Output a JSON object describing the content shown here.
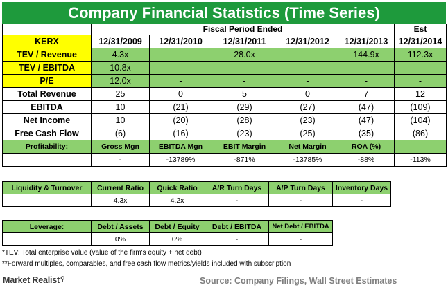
{
  "title": "Company Financial Statistics (Time Series)",
  "header": {
    "period_label": "Fiscal Period Ended",
    "est_label": "Est",
    "ticker": "KERX",
    "periods": [
      "12/31/2009",
      "12/31/2010",
      "12/31/2011",
      "12/31/2012",
      "12/31/2013",
      "12/31/2014"
    ]
  },
  "valuation_rows": [
    {
      "label": "TEV / Revenue",
      "values": [
        "4.3x",
        "-",
        "28.0x",
        "-",
        "144.9x",
        "112.3x"
      ]
    },
    {
      "label": "TEV / EBITDA",
      "values": [
        "10.8x",
        "-",
        "-",
        "-",
        "-",
        "-"
      ]
    },
    {
      "label": "P/E",
      "values": [
        "12.0x",
        "-",
        "-",
        "-",
        "-",
        "-"
      ]
    }
  ],
  "financial_rows": [
    {
      "label": "Total Revenue",
      "values": [
        "25",
        "0",
        "5",
        "0",
        "7",
        "12"
      ]
    },
    {
      "label": "EBITDA",
      "values": [
        "10",
        "(21)",
        "(29)",
        "(27)",
        "(47)",
        "(109)"
      ]
    },
    {
      "label": "Net Income",
      "values": [
        "10",
        "(20)",
        "(28)",
        "(23)",
        "(47)",
        "(104)"
      ]
    },
    {
      "label": "Free Cash Flow",
      "values": [
        "(6)",
        "(16)",
        "(23)",
        "(25)",
        "(35)",
        "(86)"
      ]
    }
  ],
  "profitability": {
    "label": "Profitability:",
    "metrics": [
      "Gross Mgn",
      "EBITDA Mgn",
      "EBIT Margin",
      "Net Margin",
      "ROA (%)",
      ""
    ],
    "values": [
      "-",
      "-13789%",
      "-871%",
      "-13785%",
      "-88%",
      "-113%"
    ]
  },
  "liquidity": {
    "label": "Liquidity & Turnover",
    "metrics": [
      "Current Ratio",
      "Quick Ratio",
      "A/R Turn Days",
      "A/P Turn Days",
      "Inventory Days"
    ],
    "values": [
      "4.3x",
      "4.2x",
      "-",
      "-",
      "-"
    ]
  },
  "leverage": {
    "label": "Leverage:",
    "metrics": [
      "Debt / Assets",
      "Debt / Equity",
      "Debt / EBITDA",
      "Net Debt / EBITDA"
    ],
    "values": [
      "0%",
      "0%",
      "-",
      "-"
    ]
  },
  "footnotes": [
    "*TEV: Total enterprise value (value of the firm's equity + net debt)",
    "**Forward multiples, comparables, and free cash flow metrics/yields included with subscription"
  ],
  "brand": "Market Realist",
  "source": "Source: Company Filings, Wall Street Estimates",
  "colors": {
    "title_bg": "#1e9a3c",
    "highlight_green": "#8dd06f",
    "highlight_yellow": "#ffff00"
  }
}
